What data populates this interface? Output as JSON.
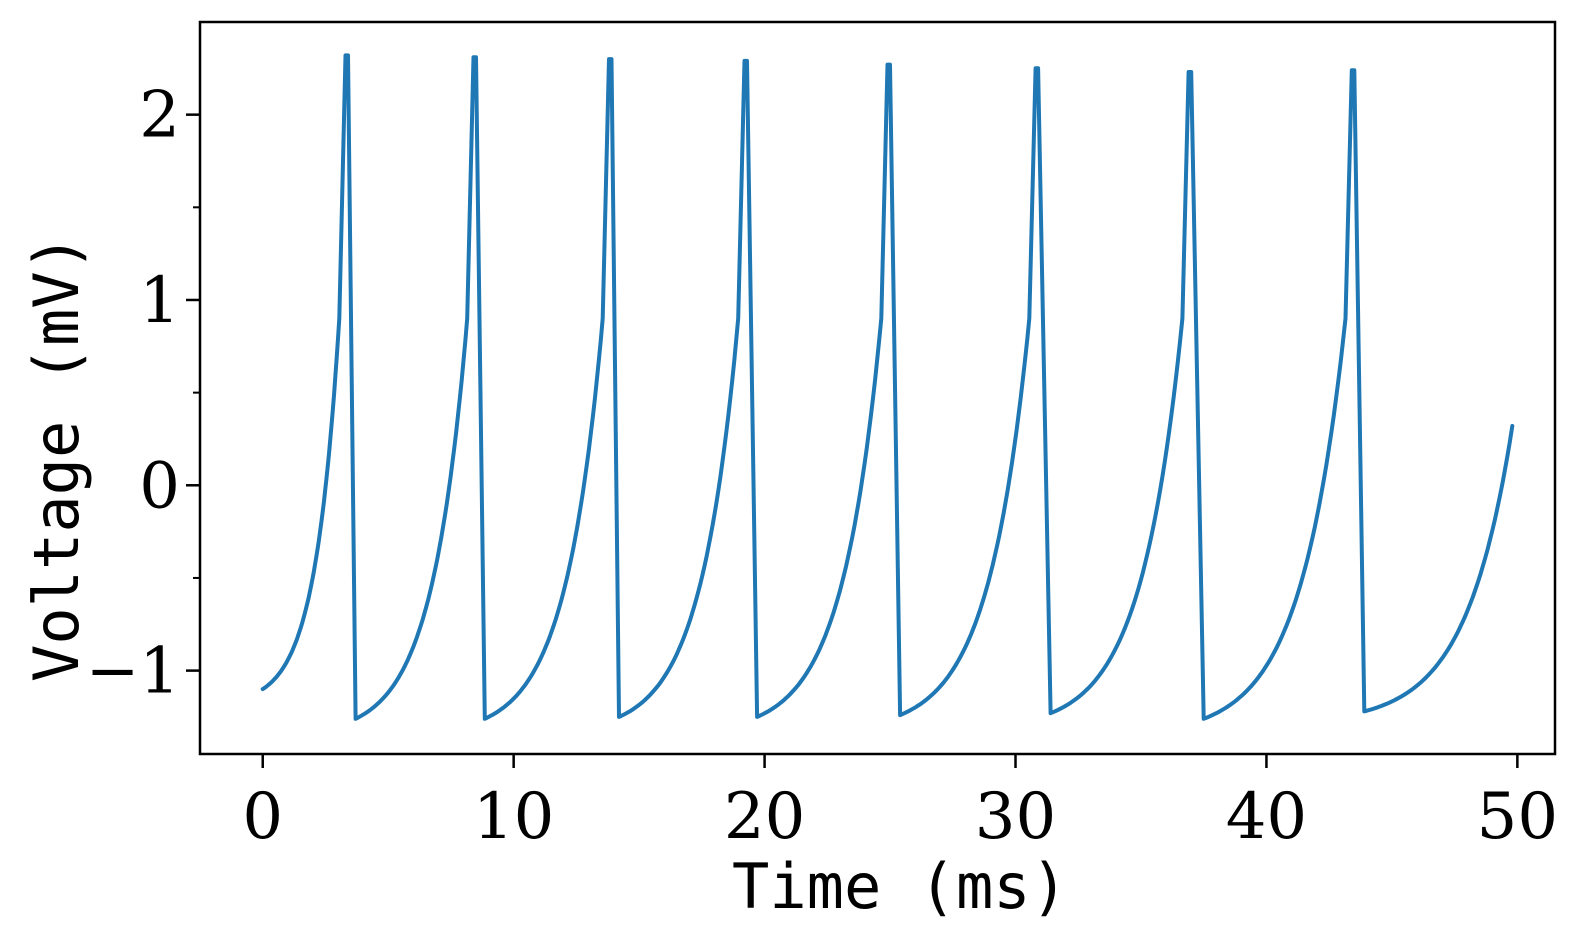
{
  "chart_data": {
    "type": "line",
    "title": "",
    "xlabel": "Time (ms)",
    "ylabel": "Voltage (mV)",
    "xlim": [
      -2.5,
      51.5
    ],
    "ylim": [
      -1.45,
      2.5
    ],
    "x_ticks": [
      0,
      10,
      20,
      30,
      40,
      50
    ],
    "x_tick_labels": [
      "0",
      "10",
      "20",
      "30",
      "40",
      "50"
    ],
    "y_ticks": [
      -1,
      0,
      1,
      2
    ],
    "y_tick_labels": [
      "−1",
      "0",
      "1",
      "2"
    ],
    "y_minor_ticks": [
      -0.5,
      0.5,
      1.5
    ],
    "grid": false,
    "legend": "none",
    "line_color": "#1f77b4",
    "series": [
      {
        "rest": -1.1,
        "reset": -1.27,
        "start": 0,
        "end": 49.8,
        "end_value": 0.32,
        "spikes": [
          {
            "t": 3.4,
            "peak": 2.32,
            "reset_t": 3.7,
            "reset_v": -1.26
          },
          {
            "t": 8.5,
            "peak": 2.31,
            "reset_t": 8.85,
            "reset_v": -1.26
          },
          {
            "t": 13.9,
            "peak": 2.3,
            "reset_t": 14.2,
            "reset_v": -1.25
          },
          {
            "t": 19.3,
            "peak": 2.29,
            "reset_t": 19.7,
            "reset_v": -1.25
          },
          {
            "t": 25.0,
            "peak": 2.27,
            "reset_t": 25.4,
            "reset_v": -1.24
          },
          {
            "t": 30.9,
            "peak": 2.25,
            "reset_t": 31.4,
            "reset_v": -1.23
          },
          {
            "t": 37.0,
            "peak": 2.23,
            "reset_t": 37.5,
            "reset_v": -1.26
          },
          {
            "t": 43.5,
            "peak": 2.24,
            "reset_t": 43.9,
            "reset_v": -1.22
          }
        ]
      }
    ]
  }
}
